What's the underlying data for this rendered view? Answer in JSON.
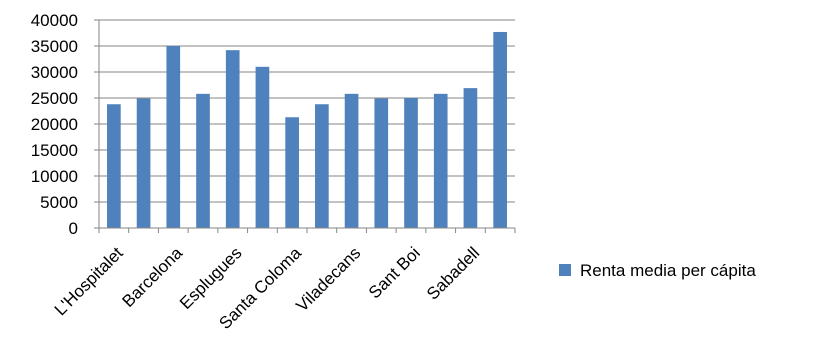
{
  "chart_data": {
    "type": "bar",
    "categories": [
      "L'Hospitalet",
      "",
      "Barcelona",
      "",
      "Esplugues",
      "",
      "Santa Coloma",
      "",
      "Viladecans",
      "",
      "Sant Boi",
      "",
      "Sabadell",
      ""
    ],
    "series": [
      {
        "name": "Renta media per cápita",
        "values": [
          23800,
          24900,
          35000,
          25800,
          34200,
          31000,
          21300,
          23800,
          25800,
          24900,
          25000,
          25800,
          26900,
          37700
        ]
      }
    ],
    "ylim": [
      0,
      40000
    ],
    "yticks": [
      0,
      5000,
      10000,
      15000,
      20000,
      25000,
      30000,
      35000,
      40000
    ],
    "grid": true,
    "legend_position": "right",
    "colors": {
      "bar": "#4F81BD",
      "axis": "#868686",
      "grid": "#868686"
    }
  }
}
